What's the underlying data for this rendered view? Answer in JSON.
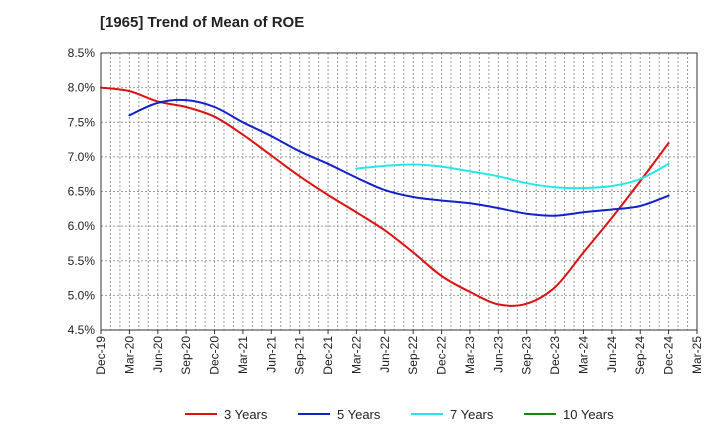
{
  "chart_data": {
    "type": "line",
    "title": "[1965]  Trend of Mean of ROE",
    "xlabel": "",
    "ylabel": "",
    "y_ticks": [
      "4.5%",
      "5.0%",
      "5.5%",
      "6.0%",
      "6.5%",
      "7.0%",
      "7.5%",
      "8.0%",
      "8.5%"
    ],
    "y_tick_values": [
      4.5,
      5.0,
      5.5,
      6.0,
      6.5,
      7.0,
      7.5,
      8.0,
      8.5
    ],
    "ylim": [
      4.5,
      8.5
    ],
    "x_ticks": [
      "Dec-19",
      "Mar-20",
      "Jun-20",
      "Sep-20",
      "Dec-20",
      "Mar-21",
      "Jun-21",
      "Sep-21",
      "Dec-21",
      "Mar-22",
      "Jun-22",
      "Sep-22",
      "Dec-22",
      "Mar-23",
      "Jun-23",
      "Sep-23",
      "Dec-23",
      "Mar-24",
      "Jun-24",
      "Sep-24",
      "Dec-24",
      "Mar-25"
    ],
    "x_range_months": [
      0,
      63
    ],
    "grid": true,
    "legend_position": "bottom",
    "series": [
      {
        "name": "3 Years",
        "color": "#dd1111",
        "x_months": [
          0,
          3,
          6,
          9,
          12,
          15,
          18,
          21,
          24,
          27,
          30,
          33,
          36,
          39,
          42,
          45,
          48,
          51,
          54,
          57,
          60
        ],
        "values": [
          8.0,
          7.95,
          7.8,
          7.72,
          7.58,
          7.32,
          7.02,
          6.72,
          6.45,
          6.2,
          5.94,
          5.62,
          5.28,
          5.05,
          4.87,
          4.88,
          5.12,
          5.62,
          6.12,
          6.65,
          7.2
        ]
      },
      {
        "name": "5 Years",
        "color": "#1122cc",
        "x_months": [
          3,
          6,
          9,
          12,
          15,
          18,
          21,
          24,
          27,
          30,
          33,
          36,
          39,
          42,
          45,
          48,
          51,
          54,
          57,
          60
        ],
        "values": [
          7.6,
          7.78,
          7.82,
          7.72,
          7.5,
          7.3,
          7.08,
          6.9,
          6.7,
          6.52,
          6.42,
          6.37,
          6.33,
          6.26,
          6.18,
          6.15,
          6.2,
          6.24,
          6.29,
          6.44
        ]
      },
      {
        "name": "7 Years",
        "color": "#22e8e8",
        "x_months": [
          27,
          30,
          33,
          36,
          39,
          42,
          45,
          48,
          51,
          54,
          57,
          60
        ],
        "values": [
          6.83,
          6.87,
          6.89,
          6.86,
          6.79,
          6.72,
          6.62,
          6.56,
          6.55,
          6.58,
          6.68,
          6.9
        ]
      },
      {
        "name": "10 Years",
        "color": "#118811",
        "x_months": [],
        "values": []
      }
    ]
  }
}
